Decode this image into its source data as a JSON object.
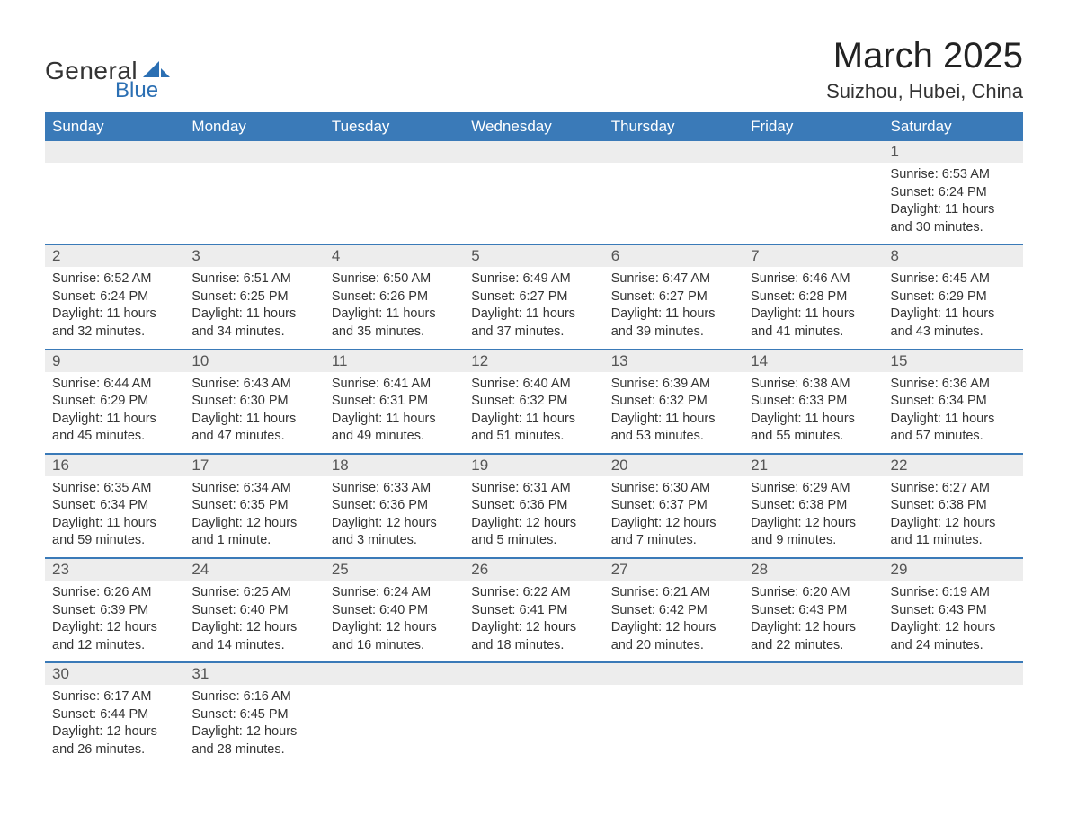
{
  "logo": {
    "text1": "General",
    "text2": "Blue",
    "sail_color": "#2b6fb3"
  },
  "title": "March 2025",
  "location": "Suizhou, Hubei, China",
  "colors": {
    "header_bg": "#3a7ab8",
    "header_fg": "#ffffff",
    "daynum_bg": "#ededed",
    "daynum_fg": "#555555",
    "row_border": "#3a7ab8",
    "body_fg": "#333333",
    "page_bg": "#ffffff"
  },
  "weekdays": [
    "Sunday",
    "Monday",
    "Tuesday",
    "Wednesday",
    "Thursday",
    "Friday",
    "Saturday"
  ],
  "weeks": [
    [
      null,
      null,
      null,
      null,
      null,
      null,
      {
        "n": "1",
        "sunrise": "Sunrise: 6:53 AM",
        "sunset": "Sunset: 6:24 PM",
        "daylight": "Daylight: 11 hours and 30 minutes."
      }
    ],
    [
      {
        "n": "2",
        "sunrise": "Sunrise: 6:52 AM",
        "sunset": "Sunset: 6:24 PM",
        "daylight": "Daylight: 11 hours and 32 minutes."
      },
      {
        "n": "3",
        "sunrise": "Sunrise: 6:51 AM",
        "sunset": "Sunset: 6:25 PM",
        "daylight": "Daylight: 11 hours and 34 minutes."
      },
      {
        "n": "4",
        "sunrise": "Sunrise: 6:50 AM",
        "sunset": "Sunset: 6:26 PM",
        "daylight": "Daylight: 11 hours and 35 minutes."
      },
      {
        "n": "5",
        "sunrise": "Sunrise: 6:49 AM",
        "sunset": "Sunset: 6:27 PM",
        "daylight": "Daylight: 11 hours and 37 minutes."
      },
      {
        "n": "6",
        "sunrise": "Sunrise: 6:47 AM",
        "sunset": "Sunset: 6:27 PM",
        "daylight": "Daylight: 11 hours and 39 minutes."
      },
      {
        "n": "7",
        "sunrise": "Sunrise: 6:46 AM",
        "sunset": "Sunset: 6:28 PM",
        "daylight": "Daylight: 11 hours and 41 minutes."
      },
      {
        "n": "8",
        "sunrise": "Sunrise: 6:45 AM",
        "sunset": "Sunset: 6:29 PM",
        "daylight": "Daylight: 11 hours and 43 minutes."
      }
    ],
    [
      {
        "n": "9",
        "sunrise": "Sunrise: 6:44 AM",
        "sunset": "Sunset: 6:29 PM",
        "daylight": "Daylight: 11 hours and 45 minutes."
      },
      {
        "n": "10",
        "sunrise": "Sunrise: 6:43 AM",
        "sunset": "Sunset: 6:30 PM",
        "daylight": "Daylight: 11 hours and 47 minutes."
      },
      {
        "n": "11",
        "sunrise": "Sunrise: 6:41 AM",
        "sunset": "Sunset: 6:31 PM",
        "daylight": "Daylight: 11 hours and 49 minutes."
      },
      {
        "n": "12",
        "sunrise": "Sunrise: 6:40 AM",
        "sunset": "Sunset: 6:32 PM",
        "daylight": "Daylight: 11 hours and 51 minutes."
      },
      {
        "n": "13",
        "sunrise": "Sunrise: 6:39 AM",
        "sunset": "Sunset: 6:32 PM",
        "daylight": "Daylight: 11 hours and 53 minutes."
      },
      {
        "n": "14",
        "sunrise": "Sunrise: 6:38 AM",
        "sunset": "Sunset: 6:33 PM",
        "daylight": "Daylight: 11 hours and 55 minutes."
      },
      {
        "n": "15",
        "sunrise": "Sunrise: 6:36 AM",
        "sunset": "Sunset: 6:34 PM",
        "daylight": "Daylight: 11 hours and 57 minutes."
      }
    ],
    [
      {
        "n": "16",
        "sunrise": "Sunrise: 6:35 AM",
        "sunset": "Sunset: 6:34 PM",
        "daylight": "Daylight: 11 hours and 59 minutes."
      },
      {
        "n": "17",
        "sunrise": "Sunrise: 6:34 AM",
        "sunset": "Sunset: 6:35 PM",
        "daylight": "Daylight: 12 hours and 1 minute."
      },
      {
        "n": "18",
        "sunrise": "Sunrise: 6:33 AM",
        "sunset": "Sunset: 6:36 PM",
        "daylight": "Daylight: 12 hours and 3 minutes."
      },
      {
        "n": "19",
        "sunrise": "Sunrise: 6:31 AM",
        "sunset": "Sunset: 6:36 PM",
        "daylight": "Daylight: 12 hours and 5 minutes."
      },
      {
        "n": "20",
        "sunrise": "Sunrise: 6:30 AM",
        "sunset": "Sunset: 6:37 PM",
        "daylight": "Daylight: 12 hours and 7 minutes."
      },
      {
        "n": "21",
        "sunrise": "Sunrise: 6:29 AM",
        "sunset": "Sunset: 6:38 PM",
        "daylight": "Daylight: 12 hours and 9 minutes."
      },
      {
        "n": "22",
        "sunrise": "Sunrise: 6:27 AM",
        "sunset": "Sunset: 6:38 PM",
        "daylight": "Daylight: 12 hours and 11 minutes."
      }
    ],
    [
      {
        "n": "23",
        "sunrise": "Sunrise: 6:26 AM",
        "sunset": "Sunset: 6:39 PM",
        "daylight": "Daylight: 12 hours and 12 minutes."
      },
      {
        "n": "24",
        "sunrise": "Sunrise: 6:25 AM",
        "sunset": "Sunset: 6:40 PM",
        "daylight": "Daylight: 12 hours and 14 minutes."
      },
      {
        "n": "25",
        "sunrise": "Sunrise: 6:24 AM",
        "sunset": "Sunset: 6:40 PM",
        "daylight": "Daylight: 12 hours and 16 minutes."
      },
      {
        "n": "26",
        "sunrise": "Sunrise: 6:22 AM",
        "sunset": "Sunset: 6:41 PM",
        "daylight": "Daylight: 12 hours and 18 minutes."
      },
      {
        "n": "27",
        "sunrise": "Sunrise: 6:21 AM",
        "sunset": "Sunset: 6:42 PM",
        "daylight": "Daylight: 12 hours and 20 minutes."
      },
      {
        "n": "28",
        "sunrise": "Sunrise: 6:20 AM",
        "sunset": "Sunset: 6:43 PM",
        "daylight": "Daylight: 12 hours and 22 minutes."
      },
      {
        "n": "29",
        "sunrise": "Sunrise: 6:19 AM",
        "sunset": "Sunset: 6:43 PM",
        "daylight": "Daylight: 12 hours and 24 minutes."
      }
    ],
    [
      {
        "n": "30",
        "sunrise": "Sunrise: 6:17 AM",
        "sunset": "Sunset: 6:44 PM",
        "daylight": "Daylight: 12 hours and 26 minutes."
      },
      {
        "n": "31",
        "sunrise": "Sunrise: 6:16 AM",
        "sunset": "Sunset: 6:45 PM",
        "daylight": "Daylight: 12 hours and 28 minutes."
      },
      null,
      null,
      null,
      null,
      null
    ]
  ]
}
